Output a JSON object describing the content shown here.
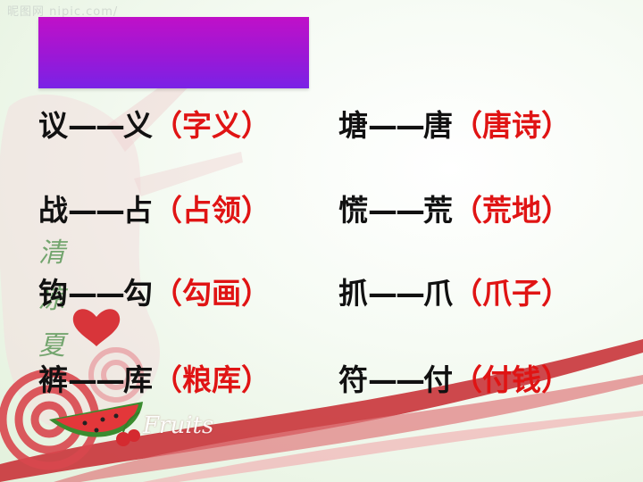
{
  "watermark": "昵图网 nipic.com/",
  "title_box": {
    "color": "#a516d3"
  },
  "decoration": {
    "vertical_text": [
      "清",
      "凉",
      "夏"
    ],
    "fruits_label": "Fruits"
  },
  "rows": [
    {
      "left": {
        "char": "议",
        "dash": "——",
        "base": "义",
        "word": "字义"
      },
      "right": {
        "char": "塘",
        "dash": "——",
        "base": "唐",
        "word": "唐诗"
      }
    },
    {
      "left": {
        "char": "战",
        "dash": "——",
        "base": "占",
        "word": "占领"
      },
      "right": {
        "char": "慌",
        "dash": "——",
        "base": "荒",
        "word": "荒地"
      }
    },
    {
      "left": {
        "char": "钩",
        "dash": "——",
        "base": "勾",
        "word": "勾画"
      },
      "right": {
        "char": "抓",
        "dash": "——",
        "base": "爪",
        "word": "爪子"
      }
    },
    {
      "left": {
        "char": "裤",
        "dash": "——",
        "base": "库",
        "word": "粮库"
      },
      "right": {
        "char": "符",
        "dash": "——",
        "base": "付",
        "word": "付钱"
      }
    }
  ],
  "paren_open": "（",
  "paren_close": "）"
}
